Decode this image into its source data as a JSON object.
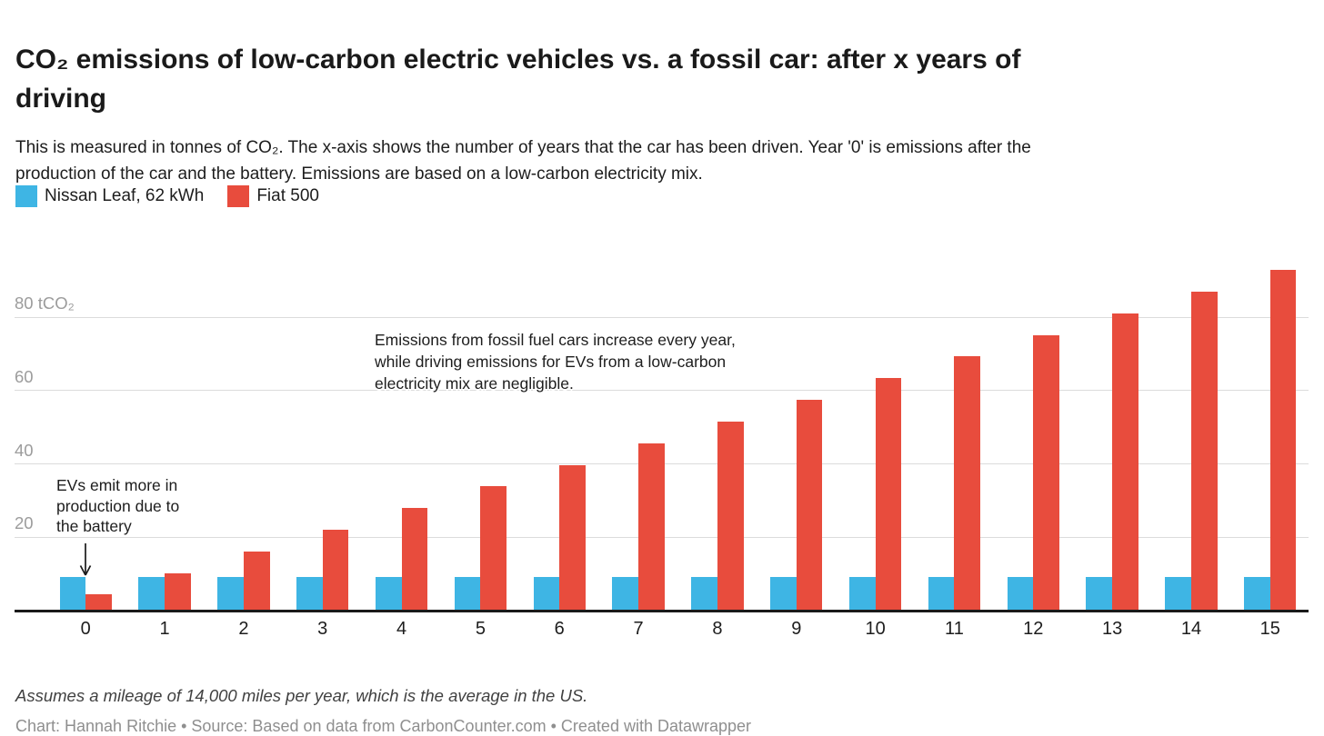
{
  "header": {
    "title": "CO₂ emissions of low-carbon electric vehicles vs. a fossil car: after x years of driving",
    "title_lines": [
      "CO₂ emissions of low-carbon electric vehicles vs. a fossil car: after x years of",
      "driving"
    ],
    "subtitle": "This is measured in tonnes of CO₂. The x-axis shows the number of years that the car has been driven. Year '0' is emissions after the production of the car and the battery. Emissions are based on a low-carbon electricity mix.",
    "subtitle_lines": [
      "This is measured in tonnes of CO₂. The x-axis shows the number of years that the car has been driven. Year '0' is emissions after the",
      "production of the car and the battery. Emissions are based on a low-carbon electricity mix."
    ]
  },
  "legend": {
    "items": [
      {
        "label": "Nissan Leaf, 62 kWh",
        "color": "#3eb5e4"
      },
      {
        "label": "Fiat 500",
        "color": "#e84c3d"
      }
    ]
  },
  "chart_data": {
    "type": "bar",
    "title": "CO₂ emissions of low-carbon electric vehicles vs. a fossil car: after x years of driving",
    "xlabel": "years of driving",
    "ylabel": "tCO₂",
    "categories": [
      "0",
      "1",
      "2",
      "3",
      "4",
      "5",
      "6",
      "7",
      "8",
      "9",
      "10",
      "11",
      "12",
      "13",
      "14",
      "15"
    ],
    "series": [
      {
        "name": "Nissan Leaf, 62 kWh",
        "color": "#3eb5e4",
        "values": [
          8.9,
          8.9,
          8.9,
          8.9,
          8.9,
          8.9,
          8.9,
          8.9,
          8.9,
          8.9,
          8.9,
          8.9,
          8.9,
          8.9,
          8.9,
          8.9
        ]
      },
      {
        "name": "Fiat 500",
        "color": "#e84c3d",
        "values": [
          4.1,
          10.0,
          15.9,
          21.8,
          27.7,
          33.6,
          39.5,
          45.4,
          51.3,
          57.2,
          63.1,
          69.0,
          74.9,
          80.8,
          86.7,
          92.6
        ]
      }
    ],
    "ylim": [
      0,
      100
    ],
    "yticks": [
      20,
      40,
      60,
      80
    ],
    "ytick_labels": [
      "20",
      "40",
      "60",
      "80 tCO₂"
    ],
    "grid": "horizontal",
    "legend_position": "top-left",
    "annotations": [
      {
        "id": "left",
        "text": "EVs emit more in production due to the battery",
        "lines": [
          "EVs emit more in",
          "production due to",
          "the battery"
        ],
        "arrow": "down-to-year-0-bars"
      },
      {
        "id": "right",
        "text": "Emissions from fossil fuel cars increase every year, while driving emissions for EVs from a low-carbon electricity mix are negligible.",
        "lines": [
          "Emissions from fossil fuel cars increase every year,",
          "while driving emissions for EVs from a low-carbon",
          "electricity mix are negligible."
        ]
      }
    ]
  },
  "footer": {
    "note": "Assumes a mileage of 14,000 miles per year, which is the average in the US.",
    "credit": "Chart: Hannah Ritchie • Source: Based on data from CarbonCounter.com • Created with Datawrapper"
  },
  "colors": {
    "series_ev": "#3eb5e4",
    "series_fossil": "#e84c3d",
    "axis": "#1a1a1a",
    "gridline": "#dcdcdc",
    "ytick_text": "#9c9c9c",
    "background": "#ffffff"
  }
}
